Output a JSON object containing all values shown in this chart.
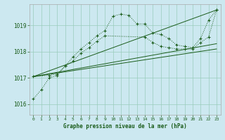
{
  "title": "Graphe pression niveau de la mer (hPa)",
  "bg_color": "#cce8f0",
  "grid_color": "#99ccbb",
  "line_color": "#1a5c1a",
  "xlim": [
    -0.5,
    23.5
  ],
  "ylim": [
    1015.6,
    1019.8
  ],
  "yticks": [
    1016,
    1017,
    1018,
    1019
  ],
  "xticks": [
    0,
    1,
    2,
    3,
    4,
    5,
    6,
    7,
    8,
    9,
    10,
    11,
    12,
    13,
    14,
    15,
    16,
    17,
    18,
    19,
    20,
    21,
    22,
    23
  ],
  "series1_x": [
    0,
    1,
    2,
    3,
    4,
    5,
    6,
    7,
    8,
    9,
    10,
    11,
    12,
    13,
    14,
    15,
    16,
    17,
    18,
    19,
    20,
    21,
    22,
    23
  ],
  "series1_y": [
    1016.2,
    1016.55,
    1017.0,
    1017.1,
    1017.45,
    1017.8,
    1018.1,
    1018.35,
    1018.6,
    1018.8,
    1019.35,
    1019.42,
    1019.38,
    1019.05,
    1019.05,
    1018.7,
    1018.65,
    1018.5,
    1018.25,
    1018.2,
    1018.15,
    1018.5,
    1019.2,
    1019.58
  ],
  "series2_x": [
    0,
    2,
    3,
    4,
    5,
    6,
    7,
    8,
    9,
    14,
    15,
    16,
    17,
    18,
    19,
    20,
    21,
    22,
    23
  ],
  "series2_y": [
    1017.05,
    1017.1,
    1017.15,
    1017.45,
    1017.65,
    1017.95,
    1018.15,
    1018.4,
    1018.6,
    1018.55,
    1018.35,
    1018.2,
    1018.15,
    1018.1,
    1018.1,
    1018.1,
    1018.35,
    1018.55,
    1019.58
  ],
  "straight_lines": [
    {
      "x": [
        0,
        23
      ],
      "y": [
        1017.05,
        1018.1
      ]
    },
    {
      "x": [
        0,
        23
      ],
      "y": [
        1017.05,
        1018.3
      ]
    },
    {
      "x": [
        0,
        23
      ],
      "y": [
        1017.05,
        1019.58
      ]
    }
  ]
}
